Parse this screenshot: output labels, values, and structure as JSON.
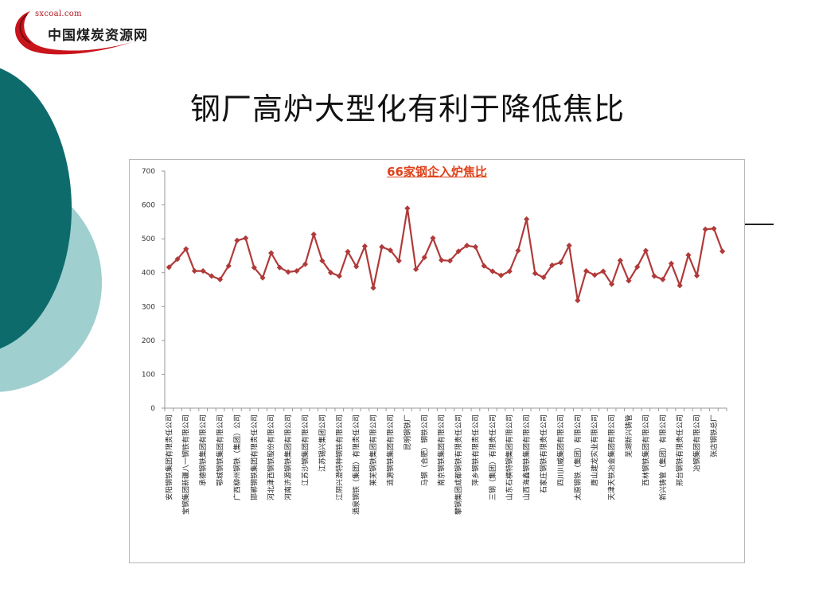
{
  "logo": {
    "url": "sxcoal.com",
    "name": "中国煤炭资源网"
  },
  "slide_title": "钢厂高炉大型化有利于降低焦比",
  "colors": {
    "teal_dark": "#0e6b6b",
    "teal_light": "#9fcfcf",
    "series": "#b03a3a",
    "chart_title": "#e0421b"
  },
  "chart_data": {
    "type": "line",
    "title": "66家钢企入炉焦比",
    "xlabel": "",
    "ylabel": "",
    "ylim": [
      0,
      700
    ],
    "yticks": [
      0,
      100,
      200,
      300,
      400,
      500,
      600,
      700
    ],
    "grid": false,
    "legend": "none",
    "categories": [
      "安阳钢铁集团有限责任公司",
      "",
      "宝钢集团新疆八一钢铁有限公司",
      "",
      "承德钢铁集团有限公司",
      "",
      "鄂城钢铁集团有限公司",
      "",
      "广西柳州钢铁（集团）公司",
      "",
      "邯郸钢铁集团有限责任公司",
      "",
      "河北津西钢铁股份有限公司",
      "",
      "河南济源钢铁集团有限公司",
      "",
      "江苏沙钢集团有限公司",
      "",
      "江苏锡兴集团公司",
      "",
      "江阴兴澄特种钢铁有限公司",
      "",
      "酒泉钢铁（集团）有限责任公司",
      "",
      "莱芜钢铁集团有限公司",
      "",
      "涟源钢铁集团有限公司",
      "",
      "昆明钢铁厂",
      "",
      "马钢（合肥）钢铁公司",
      "",
      "南京钢铁集团有限公司",
      "",
      "攀钢集团成都钢铁有限责任公司",
      "",
      "萍乡钢铁有限责任公司",
      "",
      "三钢（集团）有限责任公司",
      "",
      "山东石横特钢集团有限公司",
      "",
      "山西海鑫钢铁集团有限公司",
      "",
      "石家庄钢铁有限责任公司",
      "",
      "四川川威集团有限公司",
      "",
      "太原钢铁（集团）有限公司",
      "",
      "唐山建龙实业有限公司",
      "",
      "天津天铁冶金集团有限公司",
      "",
      "芜湖新兴铸管",
      "",
      "西林钢铁集团有限公司",
      "",
      "新兴铸管（集团）有限公司",
      "",
      "邢台钢铁有限责任公司",
      "",
      "冶钢集团有限公司",
      "",
      "张店钢铁总厂",
      ""
    ],
    "series": [
      {
        "name": "",
        "values": [
          416,
          440,
          470,
          405,
          405,
          390,
          380,
          420,
          495,
          502,
          415,
          385,
          458,
          415,
          402,
          405,
          425,
          513,
          435,
          400,
          390,
          462,
          418,
          478,
          355,
          476,
          466,
          435,
          590,
          410,
          445,
          502,
          437,
          435,
          463,
          480,
          476,
          420,
          404,
          392,
          404,
          465,
          558,
          398,
          386,
          422,
          430,
          480,
          318,
          405,
          393,
          404,
          366,
          436,
          376,
          417,
          465,
          390,
          380,
          427,
          362,
          452,
          391,
          528,
          530,
          463
        ]
      }
    ]
  }
}
